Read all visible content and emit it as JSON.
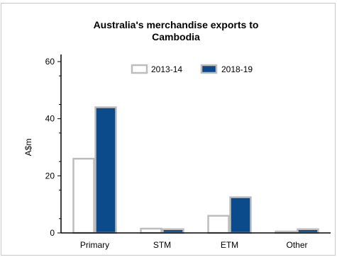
{
  "chart_data": {
    "type": "bar",
    "title_lines": [
      "Australia's merchandise exports to",
      "Cambodia"
    ],
    "xlabel": "",
    "ylabel": "A$m",
    "categories": [
      "Primary",
      "STM",
      "ETM",
      "Other"
    ],
    "series": [
      {
        "name": "2013-14",
        "values": [
          26,
          1.5,
          6,
          0.5
        ],
        "fill": "#ffffff",
        "stroke": "#bdbdbd"
      },
      {
        "name": "2018-19",
        "values": [
          44,
          1.3,
          12.5,
          1.3
        ],
        "fill": "#0b4a8b",
        "stroke": "#bdbdbd"
      }
    ],
    "ylim": [
      0,
      60
    ],
    "yticks": [
      0,
      20,
      40,
      60
    ],
    "legend_position": "top-center",
    "grid": false
  }
}
